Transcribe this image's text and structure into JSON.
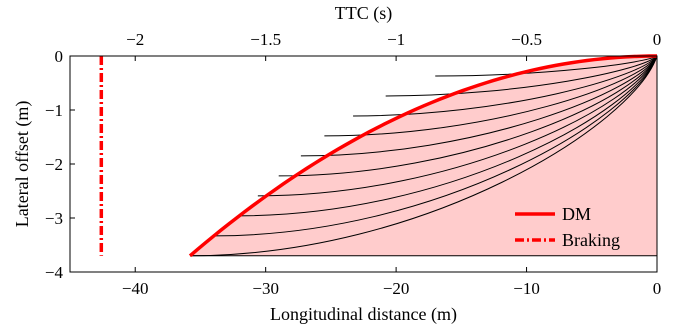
{
  "chart_data": {
    "type": "line",
    "title": "",
    "x_axis": {
      "label": "Longitudinal distance (m)",
      "range": [
        -45,
        0
      ],
      "ticks": [
        -40,
        -30,
        -20,
        -10,
        0
      ],
      "tick_labels": [
        "−40",
        "−30",
        "−20",
        "−10",
        "0"
      ]
    },
    "x2_axis": {
      "label": "TTC (s)",
      "range": [
        -2.25,
        0
      ],
      "ticks": [
        -2,
        -1.5,
        -1,
        -0.5,
        0
      ],
      "tick_labels": [
        "−2",
        "−1.5",
        "−1",
        "−0.5",
        "0"
      ]
    },
    "y_axis": {
      "label": "Lateral offset (m)",
      "range": [
        -4,
        0
      ],
      "ticks": [
        0,
        -1,
        -2,
        -3,
        -4
      ],
      "tick_labels": [
        "0",
        "−1",
        "−2",
        "−3",
        "−4"
      ]
    },
    "colors": {
      "dm": "#ff0000",
      "braking": "#ff0000",
      "region_fill": "#ffcccc",
      "trajectories": "#000000"
    },
    "dm_boundary": {
      "x": [
        0,
        -4,
        -8,
        -12,
        -16,
        -20,
        -24,
        -28,
        -32,
        -35.8
      ],
      "y": [
        0,
        -0.04,
        -0.16,
        -0.36,
        -0.64,
        -1.0,
        -1.44,
        -1.96,
        -2.56,
        -3.7
      ]
    },
    "braking_line": {
      "x": -42.6,
      "y_range": [
        0,
        -3.7
      ]
    },
    "trajectory_endpoints": [
      {
        "x": -17.0,
        "y": -0.37
      },
      {
        "x": -20.8,
        "y": -0.74
      },
      {
        "x": -23.3,
        "y": -1.11
      },
      {
        "x": -25.5,
        "y": -1.48
      },
      {
        "x": -27.3,
        "y": -1.85
      },
      {
        "x": -29.0,
        "y": -2.22
      },
      {
        "x": -30.6,
        "y": -2.59
      },
      {
        "x": -32.1,
        "y": -2.96
      },
      {
        "x": -33.9,
        "y": -3.33
      },
      {
        "x": -35.8,
        "y": -3.7
      }
    ],
    "legend": {
      "position": "bottom-right",
      "entries": [
        {
          "name": "DM",
          "style": "solid"
        },
        {
          "name": "Braking",
          "style": "dash-dot"
        }
      ]
    }
  }
}
